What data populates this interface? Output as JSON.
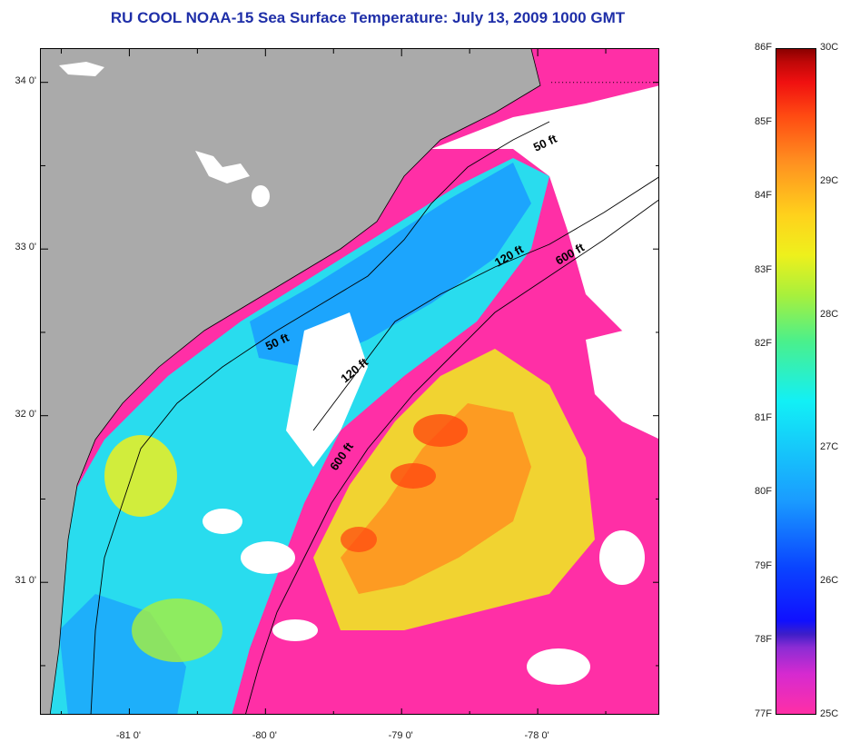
{
  "title": "RU COOL  NOAA-15  Sea Surface Temperature:  July 13, 2009 1000 GMT",
  "map": {
    "lat_ticks": [
      {
        "label": "34 0'",
        "value": 34.0
      },
      {
        "label": "33 0'",
        "value": 33.0
      },
      {
        "label": "32 0'",
        "value": 32.0
      },
      {
        "label": "31 0'",
        "value": 31.0
      }
    ],
    "lon_ticks": [
      {
        "label": "-81 0'",
        "value": -81.0
      },
      {
        "label": "-80 0'",
        "value": -80.0
      },
      {
        "label": "-79 0'",
        "value": -79.0
      },
      {
        "label": "-78 0'",
        "value": -78.0
      }
    ],
    "lon_range": [
      -81.65,
      -77.1
    ],
    "lat_range": [
      30.2,
      34.2
    ],
    "isobaths": [
      {
        "label": "50 ft"
      },
      {
        "label": "120 ft"
      },
      {
        "label": "600 ft"
      }
    ],
    "colors": {
      "land": "#aaaaaa",
      "cloud": "#ffffff",
      "cold": "#ff2fa6",
      "cool": "#1a9bff",
      "mild": "#12f0f6",
      "warm": "#eef01c",
      "hot": "#ff9020"
    }
  },
  "colorbar": {
    "fahrenheit": [
      {
        "label": "86F",
        "value": 86
      },
      {
        "label": "85F",
        "value": 85
      },
      {
        "label": "84F",
        "value": 84
      },
      {
        "label": "83F",
        "value": 83
      },
      {
        "label": "82F",
        "value": 82
      },
      {
        "label": "81F",
        "value": 81
      },
      {
        "label": "80F",
        "value": 80
      },
      {
        "label": "79F",
        "value": 79
      },
      {
        "label": "78F",
        "value": 78
      },
      {
        "label": "77F",
        "value": 77
      }
    ],
    "celsius": [
      {
        "label": "30C",
        "value": 30
      },
      {
        "label": "29C",
        "value": 29
      },
      {
        "label": "28C",
        "value": 28
      },
      {
        "label": "27C",
        "value": 27
      },
      {
        "label": "26C",
        "value": 26
      },
      {
        "label": "25C",
        "value": 25
      }
    ]
  }
}
